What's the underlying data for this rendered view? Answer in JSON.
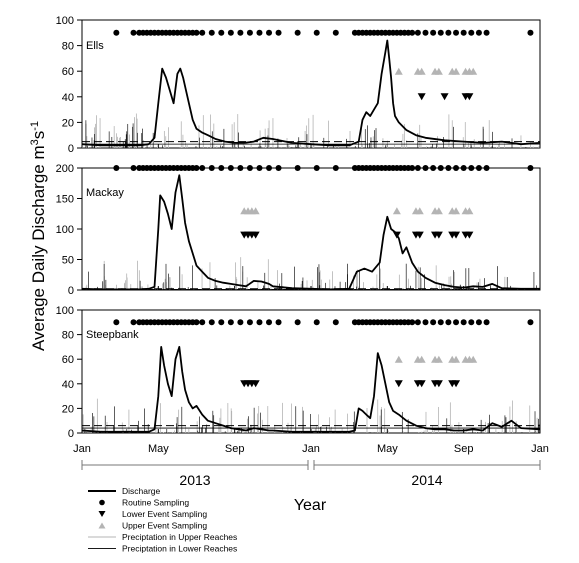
{
  "chart_data": {
    "type": "line",
    "ylabel": "Average Daily Discharge m3s-1",
    "xlabel": "Year",
    "x_tick_labels": [
      "Jan",
      "May",
      "Sep",
      "Jan",
      "May",
      "Sep",
      "Jan"
    ],
    "x_range_months": [
      0,
      24
    ],
    "year_labels": [
      "2013",
      "2014"
    ],
    "legend": [
      {
        "key": "discharge",
        "label": "Discharge",
        "marker": "thick-line"
      },
      {
        "key": "routine",
        "label": "Routine Sampling",
        "marker": "circle"
      },
      {
        "key": "lower",
        "label": "Lower Event Sampling",
        "marker": "triangle-down"
      },
      {
        "key": "upper",
        "label": "Upper Event Sampling",
        "marker": "triangle-up"
      },
      {
        "key": "precip_upper",
        "label": "Preciptation in Upper Reaches",
        "marker": "light-line"
      },
      {
        "key": "precip_lower",
        "label": "Preciptation in Lower Reaches",
        "marker": "dark-line"
      }
    ],
    "colors": {
      "discharge": "#000000",
      "routine": "#000000",
      "lower": "#000000",
      "upper": "#b4b4b4",
      "precip_upper": "#b4b4b4",
      "precip_lower": "#1a1a1a",
      "reference": "#000000"
    },
    "panels": [
      {
        "name": "Ells",
        "ylim": [
          0,
          100
        ],
        "yticks": [
          0,
          20,
          40,
          60,
          80,
          100
        ],
        "reference_lines": {
          "dashed": 5,
          "solid": 3
        },
        "routine_level": 90,
        "routine_x": [
          1.8,
          2.7,
          3.0,
          3.2,
          3.4,
          3.6,
          3.8,
          4.0,
          4.2,
          4.4,
          4.6,
          4.8,
          5.0,
          5.2,
          5.4,
          5.6,
          5.8,
          6.0,
          6.3,
          6.8,
          7.3,
          7.8,
          8.3,
          8.8,
          9.3,
          9.8,
          10.3,
          11.3,
          12.3,
          13.3,
          14.3,
          14.5,
          14.7,
          14.9,
          15.1,
          15.3,
          15.5,
          15.7,
          15.9,
          16.1,
          16.3,
          16.5,
          16.7,
          16.9,
          17.1,
          17.3,
          17.6,
          18.0,
          18.4,
          18.8,
          19.2,
          19.6,
          20.0,
          20.4,
          20.8,
          21.2,
          23.5
        ],
        "upper_level": 60,
        "upper_x": [
          16.6,
          17.6,
          17.8,
          18.5,
          18.7,
          19.4,
          19.6,
          20.1,
          20.3,
          20.5
        ],
        "lower_level": 40,
        "lower_x": [
          17.8,
          19.0,
          20.1,
          20.3
        ],
        "discharge_x": [
          0,
          1,
          2,
          3,
          3.5,
          3.8,
          4.0,
          4.2,
          4.4,
          4.6,
          4.8,
          5.0,
          5.15,
          5.3,
          5.45,
          5.6,
          5.8,
          6.0,
          6.3,
          6.6,
          7.0,
          7.5,
          8.0,
          8.5,
          9.0,
          9.5,
          10,
          11,
          12,
          13,
          14,
          14.5,
          14.7,
          14.9,
          15.1,
          15.3,
          15.5,
          15.7,
          15.9,
          16.0,
          16.1,
          16.2,
          16.3,
          16.4,
          16.6,
          17.0,
          17.5,
          18.0,
          19.0,
          20.0,
          21.0,
          22.0,
          23.0,
          24.0
        ],
        "discharge_y": [
          3,
          2,
          2,
          2,
          3,
          8,
          35,
          62,
          55,
          45,
          35,
          58,
          62,
          55,
          45,
          35,
          22,
          15,
          12,
          10,
          7,
          5,
          4,
          4,
          5,
          8,
          7,
          4,
          3,
          2,
          2,
          5,
          22,
          28,
          25,
          30,
          35,
          58,
          75,
          84,
          70,
          55,
          35,
          25,
          20,
          14,
          10,
          8,
          6,
          5,
          4,
          5,
          3,
          4
        ]
      },
      {
        "name": "Mackay",
        "ylim": [
          0,
          200
        ],
        "yticks": [
          0,
          50,
          100,
          150,
          200
        ],
        "reference_lines": {
          "dashed": 2,
          "solid": 1
        },
        "routine_level": 200,
        "routine_x": [
          1.8,
          2.7,
          3.0,
          3.2,
          3.4,
          3.6,
          3.8,
          4.0,
          4.2,
          4.4,
          4.6,
          4.8,
          5.0,
          5.2,
          5.4,
          5.6,
          5.8,
          6.0,
          6.3,
          6.8,
          7.3,
          7.8,
          8.3,
          8.8,
          9.3,
          9.8,
          10.3,
          11.3,
          12.3,
          13.3,
          14.3,
          14.5,
          14.7,
          14.9,
          15.1,
          15.3,
          15.5,
          15.7,
          15.9,
          16.1,
          16.3,
          16.5,
          16.7,
          16.9,
          17.1,
          17.3,
          17.6,
          18.0,
          18.4,
          18.8,
          19.2,
          19.6,
          20.0,
          20.4,
          20.8,
          21.2,
          23.5
        ],
        "upper_level": 130,
        "upper_x": [
          8.5,
          8.7,
          8.9,
          9.1,
          16.5,
          17.5,
          17.7,
          18.5,
          18.7,
          19.4,
          19.6,
          20.1,
          20.3
        ],
        "lower_level": 90,
        "lower_x": [
          8.5,
          8.7,
          8.9,
          9.1,
          16.5,
          17.5,
          17.7,
          18.5,
          18.7,
          19.4,
          19.6,
          20.1,
          20.3
        ],
        "discharge_x": [
          0,
          1,
          2,
          3,
          3.5,
          3.8,
          4.0,
          4.1,
          4.3,
          4.5,
          4.7,
          4.9,
          5.1,
          5.25,
          5.4,
          5.6,
          5.8,
          6.0,
          6.3,
          6.6,
          7.0,
          7.4,
          7.8,
          8.2,
          8.6,
          9.0,
          9.4,
          9.8,
          10,
          11,
          12,
          13,
          14,
          14.4,
          14.8,
          15.2,
          15.6,
          15.8,
          16.0,
          16.2,
          16.4,
          16.6,
          16.8,
          17.0,
          17.3,
          17.6,
          18.0,
          18.5,
          19,
          19.5,
          20,
          20.5,
          21,
          21.5,
          22,
          23,
          24
        ],
        "discharge_y": [
          2,
          1,
          1,
          1,
          2,
          5,
          100,
          155,
          145,
          125,
          100,
          160,
          188,
          150,
          110,
          80,
          60,
          40,
          30,
          20,
          15,
          12,
          10,
          8,
          6,
          15,
          14,
          10,
          6,
          3,
          2,
          1,
          2,
          30,
          35,
          30,
          45,
          90,
          120,
          100,
          95,
          85,
          60,
          70,
          45,
          30,
          20,
          12,
          8,
          5,
          4,
          6,
          5,
          10,
          3,
          2,
          2
        ]
      },
      {
        "name": "Steepbank",
        "ylim": [
          0,
          100
        ],
        "yticks": [
          0,
          20,
          40,
          60,
          80,
          100
        ],
        "reference_lines": {
          "dashed": 6,
          "solid": 4
        },
        "routine_level": 90,
        "routine_x": [
          1.8,
          2.7,
          3.0,
          3.2,
          3.4,
          3.6,
          3.8,
          4.0,
          4.2,
          4.4,
          4.6,
          4.8,
          5.0,
          5.2,
          5.4,
          5.6,
          5.8,
          6.0,
          6.3,
          6.8,
          7.3,
          7.8,
          8.3,
          8.8,
          9.3,
          9.8,
          10.3,
          11.3,
          12.3,
          13.3,
          14.3,
          14.5,
          14.7,
          14.9,
          15.1,
          15.3,
          15.5,
          15.7,
          15.9,
          16.1,
          16.3,
          16.5,
          16.7,
          16.9,
          17.1,
          17.3,
          17.6,
          18.0,
          18.4,
          18.8,
          19.2,
          19.6,
          20.0,
          20.4,
          20.8,
          21.2,
          23.5
        ],
        "upper_level": 60,
        "upper_x": [
          16.6,
          17.6,
          17.8,
          18.5,
          18.7,
          19.4,
          19.6,
          20.1,
          20.3,
          20.5
        ],
        "lower_level": 40,
        "lower_x": [
          8.5,
          8.7,
          8.9,
          9.1,
          16.6,
          17.6,
          17.8,
          18.5,
          18.7,
          19.4,
          19.6
        ],
        "discharge_x": [
          0,
          1,
          2,
          3,
          3.5,
          3.8,
          4.0,
          4.15,
          4.3,
          4.5,
          4.7,
          4.9,
          5.1,
          5.25,
          5.4,
          5.6,
          5.8,
          6.0,
          6.3,
          6.6,
          7.0,
          7.4,
          7.8,
          8.2,
          8.6,
          9.0,
          9.4,
          9.8,
          10,
          11,
          12,
          13,
          14,
          14.3,
          14.5,
          14.7,
          14.9,
          15.1,
          15.3,
          15.5,
          15.7,
          15.9,
          16.1,
          16.3,
          16.6,
          17.0,
          17.5,
          18,
          18.5,
          19,
          19.5,
          20,
          20.5,
          21,
          21.5,
          22,
          22.5,
          23,
          24
        ],
        "discharge_y": [
          2,
          1,
          1,
          1,
          1,
          3,
          30,
          70,
          55,
          40,
          30,
          60,
          70,
          50,
          35,
          25,
          20,
          22,
          15,
          10,
          8,
          6,
          4,
          3,
          2,
          4,
          3,
          2,
          2,
          1,
          1,
          1,
          1,
          2,
          20,
          18,
          15,
          12,
          30,
          65,
          55,
          40,
          25,
          18,
          15,
          10,
          6,
          4,
          3,
          3,
          2,
          2,
          3,
          2,
          8,
          5,
          10,
          4,
          3
        ]
      }
    ]
  }
}
